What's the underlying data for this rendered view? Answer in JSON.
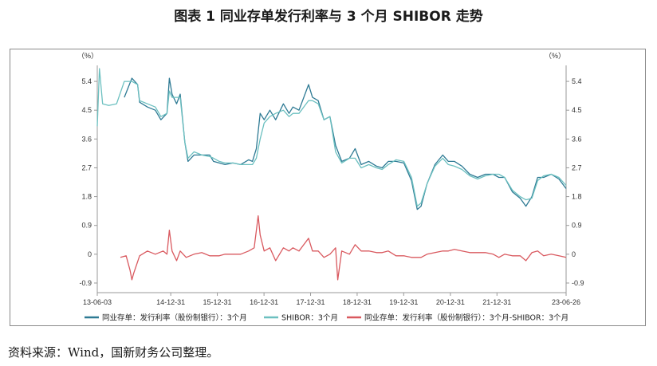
{
  "figure": {
    "title": "图表 1  同业存单发行利率与 3 个月 SHIBOR 走势",
    "source": "资料来源：Wind，国新财务公司整理。"
  },
  "chart_data": {
    "type": "line",
    "left_unit": "（%）",
    "right_unit": "（%）",
    "ylim": [
      -1.2,
      5.9
    ],
    "yticks": [
      5.4,
      4.5,
      3.6,
      2.7,
      1.8,
      0.9,
      0,
      -0.9
    ],
    "ytick_labels": [
      "5.4",
      "4.5",
      "3.6",
      "2.7",
      "1.8",
      "0.9",
      "0",
      "-0.9"
    ],
    "x_start": "2013-06-03",
    "x_end": "2023-06-26",
    "xtick_dates": [
      "2013-06-03",
      "2014-12-31",
      "2015-12-31",
      "2016-12-31",
      "2017-12-31",
      "2018-12-31",
      "2019-12-31",
      "2020-12-31",
      "2021-12-31",
      "2023-06-26"
    ],
    "xtick_labels": [
      "13-06-03",
      "14-12-31",
      "15-12-31",
      "16-12-31",
      "17-12-31",
      "18-12-31",
      "19-12-31",
      "20-12-31",
      "21-12-31",
      "23-06-26"
    ],
    "series": [
      {
        "name": "同业存单：发行利率（股份制银行）：3个月",
        "color": "#2e7a94",
        "points": [
          [
            "2014-01-01",
            4.9
          ],
          [
            "2014-03-01",
            5.5
          ],
          [
            "2014-04-15",
            5.3
          ],
          [
            "2014-05-01",
            4.75
          ],
          [
            "2014-07-01",
            4.6
          ],
          [
            "2014-09-01",
            4.5
          ],
          [
            "2014-10-15",
            4.2
          ],
          [
            "2014-12-01",
            4.4
          ],
          [
            "2014-12-20",
            5.5
          ],
          [
            "2015-01-10",
            5.0
          ],
          [
            "2015-02-15",
            4.7
          ],
          [
            "2015-03-15",
            5.0
          ],
          [
            "2015-04-20",
            3.5
          ],
          [
            "2015-05-15",
            2.9
          ],
          [
            "2015-07-01",
            3.1
          ],
          [
            "2015-09-01",
            3.1
          ],
          [
            "2015-11-01",
            3.1
          ],
          [
            "2015-12-01",
            2.9
          ],
          [
            "2016-01-15",
            2.85
          ],
          [
            "2016-03-01",
            2.8
          ],
          [
            "2016-05-01",
            2.85
          ],
          [
            "2016-07-01",
            2.8
          ],
          [
            "2016-09-01",
            2.95
          ],
          [
            "2016-10-01",
            2.9
          ],
          [
            "2016-11-01",
            3.3
          ],
          [
            "2016-12-01",
            4.4
          ],
          [
            "2017-01-01",
            4.2
          ],
          [
            "2017-02-15",
            4.5
          ],
          [
            "2017-04-01",
            4.2
          ],
          [
            "2017-06-01",
            4.7
          ],
          [
            "2017-07-15",
            4.4
          ],
          [
            "2017-08-15",
            4.6
          ],
          [
            "2017-10-01",
            4.5
          ],
          [
            "2017-12-15",
            5.3
          ],
          [
            "2018-01-15",
            4.9
          ],
          [
            "2018-03-01",
            4.8
          ],
          [
            "2018-04-15",
            4.2
          ],
          [
            "2018-06-01",
            4.3
          ],
          [
            "2018-07-15",
            3.4
          ],
          [
            "2018-09-01",
            2.9
          ],
          [
            "2018-11-01",
            3.0
          ],
          [
            "2018-12-15",
            3.3
          ],
          [
            "2019-02-01",
            2.8
          ],
          [
            "2019-04-01",
            2.9
          ],
          [
            "2019-06-01",
            2.75
          ],
          [
            "2019-07-15",
            2.7
          ],
          [
            "2019-09-01",
            2.9
          ],
          [
            "2019-11-01",
            2.9
          ],
          [
            "2020-01-01",
            2.85
          ],
          [
            "2020-03-01",
            2.3
          ],
          [
            "2020-04-15",
            1.4
          ],
          [
            "2020-05-15",
            1.5
          ],
          [
            "2020-07-01",
            2.2
          ],
          [
            "2020-09-01",
            2.8
          ],
          [
            "2020-11-01",
            3.1
          ],
          [
            "2020-12-15",
            2.9
          ],
          [
            "2021-02-01",
            2.9
          ],
          [
            "2021-04-01",
            2.75
          ],
          [
            "2021-06-01",
            2.5
          ],
          [
            "2021-08-01",
            2.4
          ],
          [
            "2021-10-01",
            2.5
          ],
          [
            "2021-12-01",
            2.5
          ],
          [
            "2022-01-15",
            2.4
          ],
          [
            "2022-03-01",
            2.4
          ],
          [
            "2022-05-01",
            1.95
          ],
          [
            "2022-07-01",
            1.75
          ],
          [
            "2022-08-15",
            1.5
          ],
          [
            "2022-10-01",
            1.8
          ],
          [
            "2022-11-15",
            2.4
          ],
          [
            "2023-01-01",
            2.4
          ],
          [
            "2023-03-01",
            2.5
          ],
          [
            "2023-05-01",
            2.35
          ],
          [
            "2023-06-26",
            2.05
          ]
        ]
      },
      {
        "name": "SHIBOR：3个月",
        "color": "#6cc0c0",
        "points": [
          [
            "2013-06-03",
            4.0
          ],
          [
            "2013-06-20",
            5.8
          ],
          [
            "2013-07-15",
            4.7
          ],
          [
            "2013-09-01",
            4.65
          ],
          [
            "2013-11-01",
            4.7
          ],
          [
            "2014-01-01",
            5.4
          ],
          [
            "2014-03-01",
            5.4
          ],
          [
            "2014-04-15",
            5.3
          ],
          [
            "2014-05-01",
            4.8
          ],
          [
            "2014-07-01",
            4.7
          ],
          [
            "2014-09-01",
            4.6
          ],
          [
            "2014-10-15",
            4.3
          ],
          [
            "2014-12-01",
            4.4
          ],
          [
            "2014-12-20",
            5.1
          ],
          [
            "2015-01-10",
            4.9
          ],
          [
            "2015-02-15",
            4.9
          ],
          [
            "2015-03-15",
            4.9
          ],
          [
            "2015-04-20",
            3.5
          ],
          [
            "2015-05-15",
            3.0
          ],
          [
            "2015-07-01",
            3.2
          ],
          [
            "2015-09-01",
            3.1
          ],
          [
            "2015-11-01",
            3.05
          ],
          [
            "2015-12-01",
            3.0
          ],
          [
            "2016-01-15",
            2.9
          ],
          [
            "2016-03-01",
            2.85
          ],
          [
            "2016-05-01",
            2.85
          ],
          [
            "2016-07-01",
            2.8
          ],
          [
            "2016-09-01",
            2.8
          ],
          [
            "2016-10-01",
            2.8
          ],
          [
            "2016-11-01",
            3.0
          ],
          [
            "2016-12-01",
            3.6
          ],
          [
            "2017-01-01",
            4.1
          ],
          [
            "2017-02-15",
            4.3
          ],
          [
            "2017-04-01",
            4.4
          ],
          [
            "2017-06-01",
            4.5
          ],
          [
            "2017-07-15",
            4.3
          ],
          [
            "2017-08-15",
            4.4
          ],
          [
            "2017-10-01",
            4.4
          ],
          [
            "2017-12-15",
            4.8
          ],
          [
            "2018-01-15",
            4.8
          ],
          [
            "2018-03-01",
            4.7
          ],
          [
            "2018-04-15",
            4.2
          ],
          [
            "2018-06-01",
            4.3
          ],
          [
            "2018-07-15",
            3.2
          ],
          [
            "2018-09-01",
            2.85
          ],
          [
            "2018-11-01",
            3.0
          ],
          [
            "2018-12-15",
            3.0
          ],
          [
            "2019-02-01",
            2.7
          ],
          [
            "2019-04-01",
            2.8
          ],
          [
            "2019-06-01",
            2.7
          ],
          [
            "2019-07-15",
            2.65
          ],
          [
            "2019-09-01",
            2.8
          ],
          [
            "2019-11-01",
            2.95
          ],
          [
            "2020-01-01",
            2.9
          ],
          [
            "2020-03-01",
            2.4
          ],
          [
            "2020-04-15",
            1.5
          ],
          [
            "2020-05-15",
            1.6
          ],
          [
            "2020-07-01",
            2.2
          ],
          [
            "2020-09-01",
            2.75
          ],
          [
            "2020-11-01",
            3.0
          ],
          [
            "2020-12-15",
            2.8
          ],
          [
            "2021-02-01",
            2.75
          ],
          [
            "2021-04-01",
            2.65
          ],
          [
            "2021-06-01",
            2.45
          ],
          [
            "2021-08-01",
            2.35
          ],
          [
            "2021-10-01",
            2.45
          ],
          [
            "2021-12-01",
            2.5
          ],
          [
            "2022-01-15",
            2.5
          ],
          [
            "2022-03-01",
            2.4
          ],
          [
            "2022-05-01",
            2.0
          ],
          [
            "2022-07-01",
            1.8
          ],
          [
            "2022-08-15",
            1.7
          ],
          [
            "2022-10-01",
            1.75
          ],
          [
            "2022-11-15",
            2.3
          ],
          [
            "2023-01-01",
            2.45
          ],
          [
            "2023-03-01",
            2.5
          ],
          [
            "2023-05-01",
            2.4
          ],
          [
            "2023-06-26",
            2.15
          ]
        ]
      },
      {
        "name": "同业存单：发行利率（股份制银行）：3个月-SHIBOR：3个月",
        "color": "#d9595f",
        "points": [
          [
            "2013-12-01",
            -0.1
          ],
          [
            "2014-01-15",
            -0.05
          ],
          [
            "2014-02-15",
            -0.5
          ],
          [
            "2014-03-01",
            -0.8
          ],
          [
            "2014-03-15",
            -0.6
          ],
          [
            "2014-05-01",
            -0.05
          ],
          [
            "2014-07-01",
            0.1
          ],
          [
            "2014-09-01",
            0.0
          ],
          [
            "2014-11-01",
            0.1
          ],
          [
            "2014-12-01",
            0.0
          ],
          [
            "2014-12-20",
            0.75
          ],
          [
            "2015-01-10",
            0.1
          ],
          [
            "2015-02-15",
            -0.2
          ],
          [
            "2015-03-15",
            0.1
          ],
          [
            "2015-05-01",
            -0.1
          ],
          [
            "2015-07-01",
            0.0
          ],
          [
            "2015-09-01",
            0.05
          ],
          [
            "2015-11-01",
            -0.05
          ],
          [
            "2016-01-15",
            -0.05
          ],
          [
            "2016-03-01",
            0.0
          ],
          [
            "2016-05-01",
            0.0
          ],
          [
            "2016-07-01",
            0.0
          ],
          [
            "2016-09-01",
            0.1
          ],
          [
            "2016-10-15",
            0.2
          ],
          [
            "2016-11-15",
            1.2
          ],
          [
            "2016-12-01",
            0.6
          ],
          [
            "2017-01-01",
            0.1
          ],
          [
            "2017-02-15",
            0.2
          ],
          [
            "2017-04-01",
            -0.2
          ],
          [
            "2017-06-01",
            0.2
          ],
          [
            "2017-07-15",
            0.1
          ],
          [
            "2017-08-15",
            0.2
          ],
          [
            "2017-10-01",
            0.1
          ],
          [
            "2017-12-15",
            0.5
          ],
          [
            "2018-01-15",
            0.1
          ],
          [
            "2018-03-01",
            0.1
          ],
          [
            "2018-04-15",
            -0.1
          ],
          [
            "2018-06-01",
            0.0
          ],
          [
            "2018-07-15",
            0.2
          ],
          [
            "2018-08-01",
            -0.8
          ],
          [
            "2018-09-01",
            0.1
          ],
          [
            "2018-11-01",
            0.0
          ],
          [
            "2018-12-15",
            0.3
          ],
          [
            "2019-02-01",
            0.1
          ],
          [
            "2019-04-01",
            0.1
          ],
          [
            "2019-06-01",
            0.05
          ],
          [
            "2019-07-15",
            0.05
          ],
          [
            "2019-09-01",
            0.1
          ],
          [
            "2019-11-01",
            -0.05
          ],
          [
            "2020-01-01",
            -0.05
          ],
          [
            "2020-03-01",
            -0.1
          ],
          [
            "2020-04-15",
            -0.1
          ],
          [
            "2020-05-15",
            -0.1
          ],
          [
            "2020-07-01",
            0.0
          ],
          [
            "2020-09-01",
            0.05
          ],
          [
            "2020-11-01",
            0.1
          ],
          [
            "2020-12-15",
            0.1
          ],
          [
            "2021-02-01",
            0.15
          ],
          [
            "2021-04-01",
            0.1
          ],
          [
            "2021-06-01",
            0.05
          ],
          [
            "2021-08-01",
            0.05
          ],
          [
            "2021-10-01",
            0.05
          ],
          [
            "2021-12-01",
            0.0
          ],
          [
            "2022-01-15",
            -0.1
          ],
          [
            "2022-03-01",
            0.0
          ],
          [
            "2022-05-01",
            -0.05
          ],
          [
            "2022-07-01",
            -0.05
          ],
          [
            "2022-08-15",
            -0.2
          ],
          [
            "2022-10-01",
            0.05
          ],
          [
            "2022-11-15",
            0.1
          ],
          [
            "2023-01-01",
            -0.05
          ],
          [
            "2023-03-01",
            0.0
          ],
          [
            "2023-05-01",
            -0.05
          ],
          [
            "2023-06-26",
            -0.1
          ]
        ]
      }
    ],
    "grid": false,
    "legend_position": "bottom"
  }
}
